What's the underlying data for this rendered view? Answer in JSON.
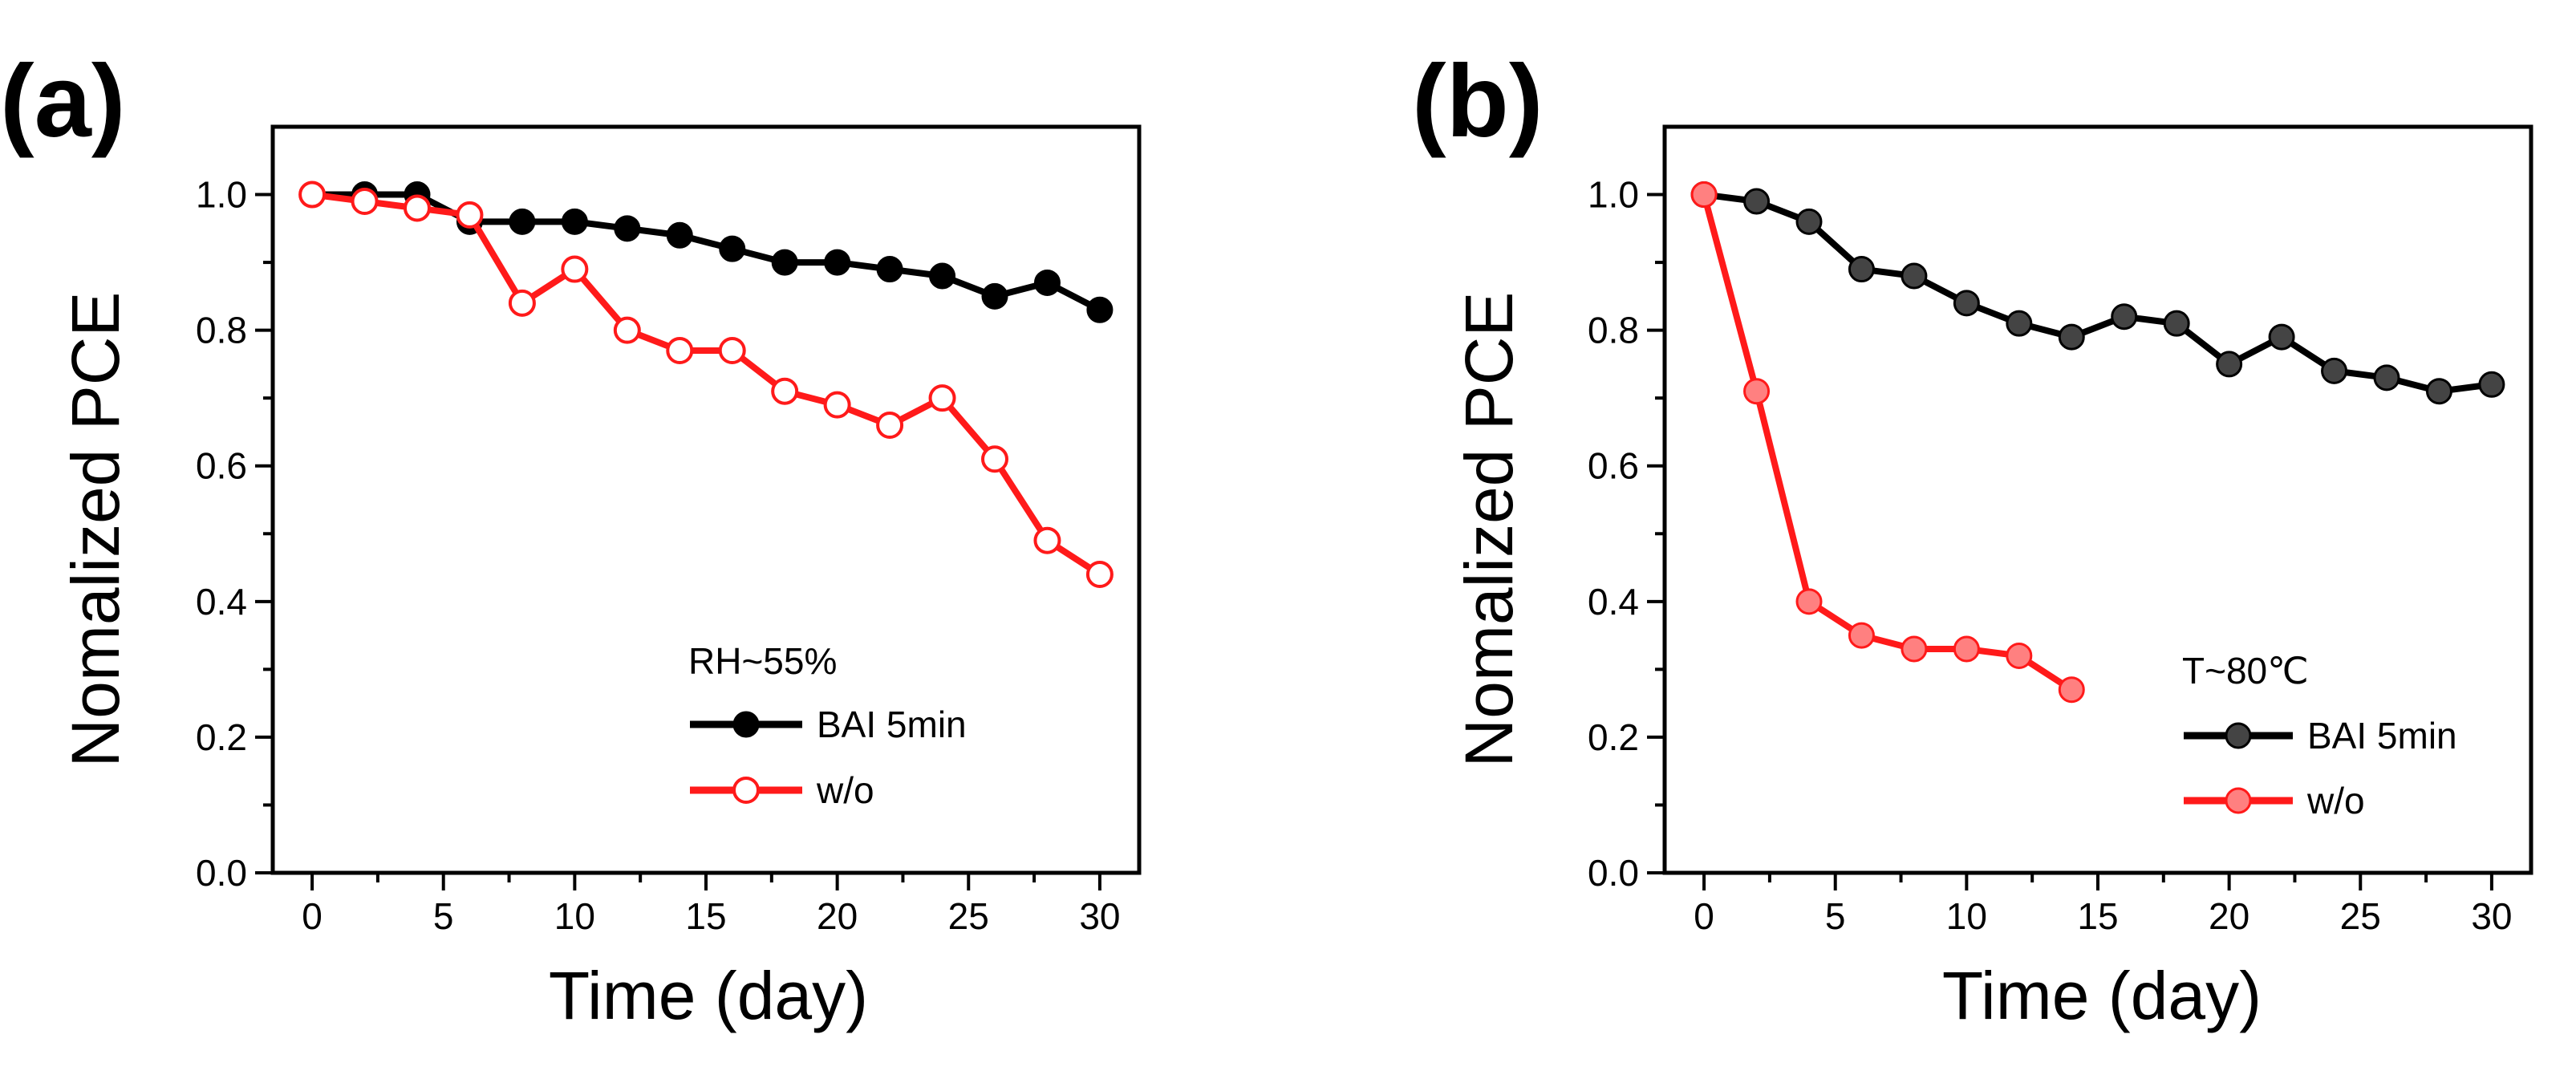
{
  "chart_data": [
    {
      "type": "line",
      "panel_label": "(a)",
      "annotation": "RH~55%",
      "xlabel": "Time (day)",
      "ylabel": "Nomalized PCE",
      "xlim": [
        -1.5,
        31.5
      ],
      "ylim": [
        0.0,
        1.1
      ],
      "xticks": [
        0,
        5,
        10,
        15,
        20,
        25,
        30
      ],
      "xtick_labels": [
        "0",
        "5",
        "10",
        "15",
        "20",
        "25",
        "30"
      ],
      "yticks": [
        0.0,
        0.2,
        0.4,
        0.6,
        0.8,
        1.0
      ],
      "ytick_labels": [
        "0.0",
        "0.2",
        "0.4",
        "0.6",
        "0.8",
        "1.0"
      ],
      "grid": false,
      "legend_position": "lower-right",
      "series": [
        {
          "name": "BAI 5min",
          "color": "#000000",
          "marker": "filled-circle",
          "x": [
            0,
            2,
            4,
            6,
            8,
            10,
            12,
            14,
            16,
            18,
            20,
            22,
            24,
            26,
            28,
            30
          ],
          "values": [
            1.0,
            1.0,
            1.0,
            0.96,
            0.96,
            0.96,
            0.95,
            0.94,
            0.92,
            0.9,
            0.9,
            0.89,
            0.88,
            0.85,
            0.87,
            0.83
          ]
        },
        {
          "name": "w/o",
          "color": "#ff1a1a",
          "marker": "open-circle",
          "x": [
            0,
            2,
            4,
            6,
            8,
            10,
            12,
            14,
            16,
            18,
            20,
            22,
            24,
            26,
            28,
            30
          ],
          "values": [
            1.0,
            0.99,
            0.98,
            0.97,
            0.84,
            0.89,
            0.8,
            0.77,
            0.77,
            0.71,
            0.69,
            0.66,
            0.7,
            0.61,
            0.49,
            0.44
          ]
        }
      ]
    },
    {
      "type": "line",
      "panel_label": "(b)",
      "annotation": "T~80℃",
      "xlabel": "Time (day)",
      "ylabel": "Nomalized PCE",
      "xlim": [
        -1.5,
        31.5
      ],
      "ylim": [
        0.0,
        1.1
      ],
      "xticks": [
        0,
        5,
        10,
        15,
        20,
        25,
        30
      ],
      "xtick_labels": [
        "0",
        "5",
        "10",
        "15",
        "20",
        "25",
        "30"
      ],
      "yticks": [
        0.0,
        0.2,
        0.4,
        0.6,
        0.8,
        1.0
      ],
      "ytick_labels": [
        "0.0",
        "0.2",
        "0.4",
        "0.6",
        "0.8",
        "1.0"
      ],
      "grid": false,
      "legend_position": "lower-right",
      "series": [
        {
          "name": "BAI 5min",
          "color": "#000000",
          "marker": "shaded-circle",
          "x": [
            0,
            2,
            4,
            6,
            8,
            10,
            12,
            14,
            16,
            18,
            20,
            22,
            24,
            26,
            28,
            30
          ],
          "values": [
            1.0,
            0.99,
            0.96,
            0.89,
            0.88,
            0.84,
            0.81,
            0.79,
            0.82,
            0.81,
            0.75,
            0.79,
            0.74,
            0.73,
            0.71,
            0.72
          ]
        },
        {
          "name": "w/o",
          "color": "#ff1a1a",
          "marker": "shaded-circle",
          "x": [
            0,
            2,
            4,
            6,
            8,
            10,
            12,
            14
          ],
          "values": [
            1.0,
            0.71,
            0.4,
            0.35,
            0.33,
            0.33,
            0.32,
            0.27
          ]
        }
      ]
    }
  ]
}
